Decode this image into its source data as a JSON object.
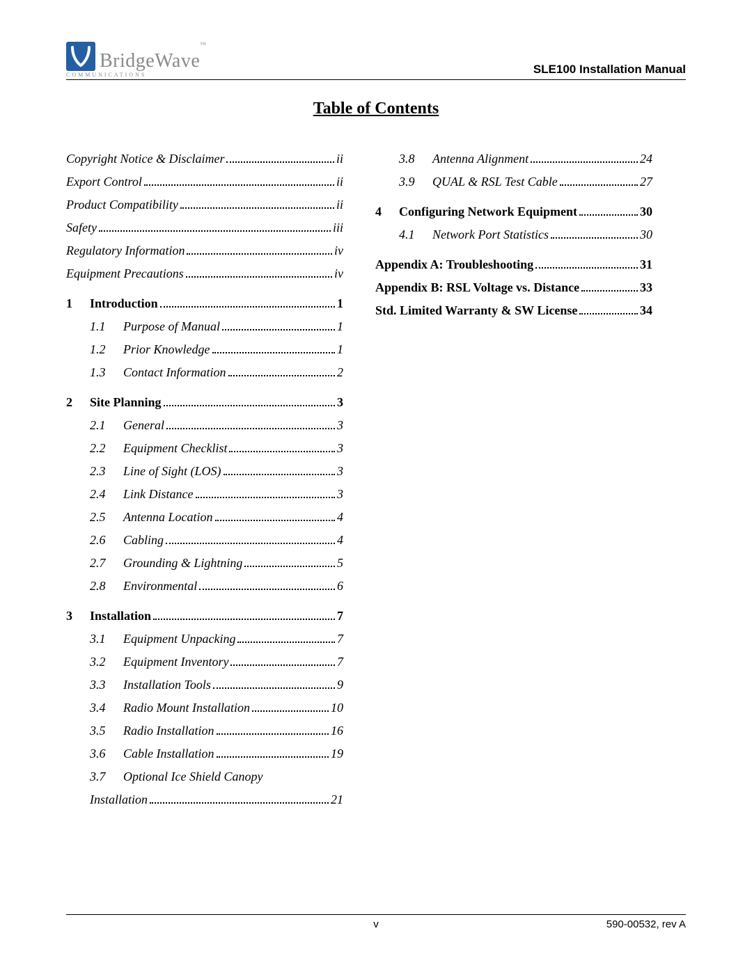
{
  "brand": {
    "name": "BridgeWave",
    "tm": "™",
    "sub": "COMMUNICATIONS"
  },
  "manual_title": "SLE100 Installation Manual",
  "toc_heading": "Table of Contents",
  "col1": [
    {
      "style": "italic",
      "label": "Copyright Notice & Disclaimer",
      "page": "ii"
    },
    {
      "style": "italic",
      "label": "Export Control",
      "page": "ii"
    },
    {
      "style": "italic",
      "label": "Product Compatibility",
      "page": "ii"
    },
    {
      "style": "italic",
      "label": "Safety",
      "page": "iii"
    },
    {
      "style": "italic",
      "label": "Regulatory Information",
      "page": "iv"
    },
    {
      "style": "italic",
      "label": "Equipment Precautions",
      "page": "iv"
    },
    {
      "style": "bold",
      "num": "1",
      "label": "Introduction",
      "page": "1"
    },
    {
      "style": "italic",
      "subnum": "1.1",
      "label": "Purpose of Manual",
      "page": "1"
    },
    {
      "style": "italic",
      "subnum": "1.2",
      "label": "Prior Knowledge",
      "page": "1"
    },
    {
      "style": "italic",
      "subnum": "1.3",
      "label": "Contact Information",
      "page": "2"
    },
    {
      "style": "bold",
      "num": "2",
      "label": "Site Planning",
      "page": "3"
    },
    {
      "style": "italic",
      "subnum": "2.1",
      "label": "General",
      "page": "3"
    },
    {
      "style": "italic",
      "subnum": "2.2",
      "label": "Equipment Checklist",
      "page": "3"
    },
    {
      "style": "italic",
      "subnum": "2.3",
      "label": "Line of Sight (LOS)",
      "page": "3"
    },
    {
      "style": "italic",
      "subnum": "2.4",
      "label": "Link Distance",
      "page": "3"
    },
    {
      "style": "italic",
      "subnum": "2.5",
      "label": "Antenna Location",
      "page": "4"
    },
    {
      "style": "italic",
      "subnum": "2.6",
      "label": "Cabling",
      "page": "4"
    },
    {
      "style": "italic",
      "subnum": "2.7",
      "label": "Grounding & Lightning",
      "page": "5"
    },
    {
      "style": "italic",
      "subnum": "2.8",
      "label": "Environmental",
      "page": "6"
    },
    {
      "style": "bold",
      "num": "3",
      "label": "Installation",
      "page": "7"
    },
    {
      "style": "italic",
      "subnum": "3.1",
      "label": "Equipment Unpacking",
      "page": "7"
    },
    {
      "style": "italic",
      "subnum": "3.2",
      "label": "Equipment Inventory",
      "page": "7"
    },
    {
      "style": "italic",
      "subnum": "3.3",
      "label": "Installation Tools",
      "page": "9"
    },
    {
      "style": "italic",
      "subnum": "3.4",
      "label": "Radio Mount Installation",
      "page": "10"
    },
    {
      "style": "italic",
      "subnum": "3.5",
      "label": "Radio Installation",
      "page": "16"
    },
    {
      "style": "italic",
      "subnum": "3.6",
      "label": "Cable Installation",
      "page": "19"
    },
    {
      "style": "italic",
      "subnum": "3.7",
      "label": "Optional Ice Shield Canopy",
      "nopage": true
    },
    {
      "style": "italic",
      "indent": true,
      "label": "Installation",
      "page": "21"
    }
  ],
  "col2": [
    {
      "style": "italic",
      "subnum": "3.8",
      "label": "Antenna Alignment",
      "page": "24"
    },
    {
      "style": "italic",
      "subnum": "3.9",
      "label": "QUAL & RSL Test Cable",
      "page": "27"
    },
    {
      "style": "bold",
      "num": "4",
      "label": "Configuring Network Equipment",
      "page": "30"
    },
    {
      "style": "italic",
      "subnum": "4.1",
      "label": "Network Port Statistics",
      "page": "30"
    },
    {
      "style": "bold",
      "label": "Appendix A: Troubleshooting",
      "page": "31"
    },
    {
      "style": "bold",
      "label": "Appendix B: RSL Voltage vs. Distance",
      "page": "33"
    },
    {
      "style": "bold",
      "label": "Std. Limited Warranty & SW License",
      "page": "34"
    }
  ],
  "footer": {
    "center": "v",
    "right": "590-00532, rev A"
  },
  "colors": {
    "logo_bg": "#245fa3",
    "brand_text": "#8a8a8a",
    "text": "#000000"
  }
}
